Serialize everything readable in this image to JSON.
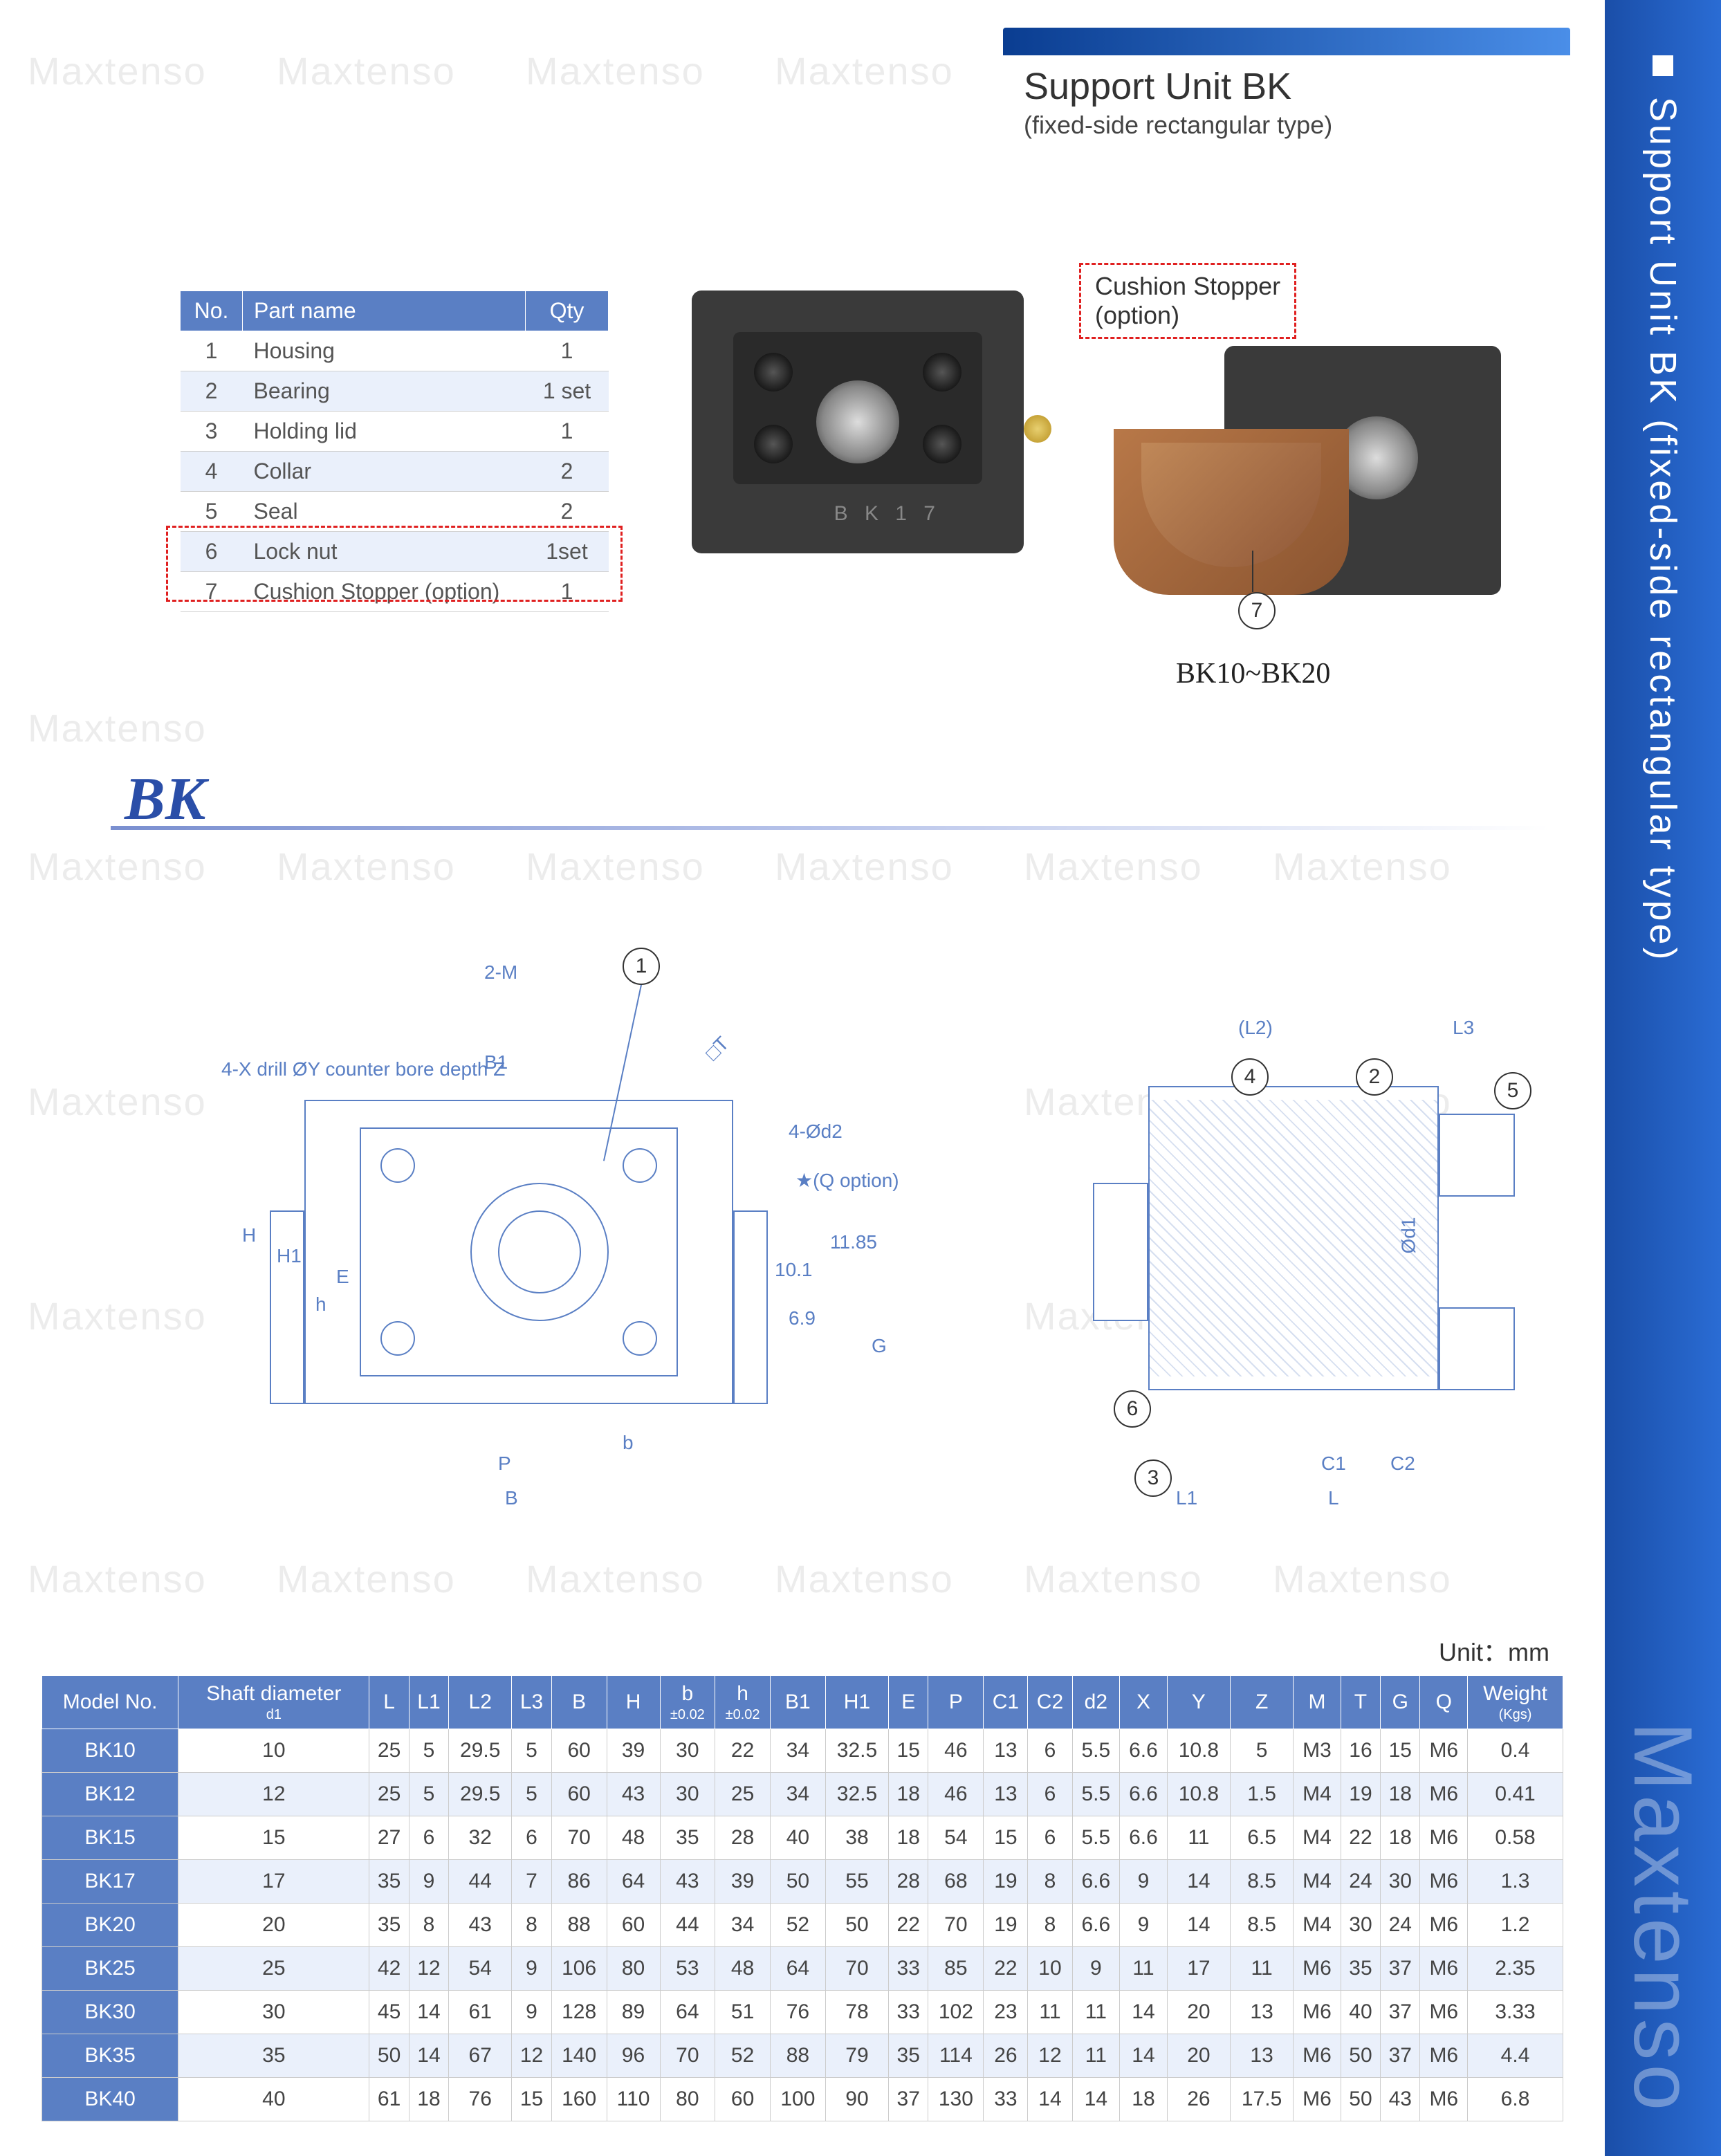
{
  "page": {
    "background_color": "#ffffff",
    "watermark_text": "Maxtenso",
    "watermark_color": "rgba(150,150,150,0.18)",
    "watermark_fontsize": 56
  },
  "side_stripe": {
    "gradient": [
      "#1a4ea8",
      "#2a6cd4"
    ],
    "text": "Support Unit BK (fixed-side rectangular type)",
    "text_color": "#ffffff",
    "text_fontsize": 54,
    "brand": "Maxtenso",
    "brand_color": "rgba(255,255,255,0.35)",
    "brand_fontsize": 120
  },
  "title_box": {
    "bar_gradient": [
      "#0a3d91",
      "#4a8ee8"
    ],
    "title": "Support Unit BK",
    "title_fontsize": 54,
    "subtitle": "(fixed-side rectangular type)",
    "subtitle_fontsize": 36
  },
  "parts_table": {
    "headers": [
      "No.",
      "Part name",
      "Qty"
    ],
    "header_bg": "#5a7fc4",
    "header_fg": "#ffffff",
    "row_alt_bg": "#eaf0fb",
    "dash_color": "#e02020",
    "rows": [
      {
        "no": "1",
        "name": "Housing",
        "qty": "1"
      },
      {
        "no": "2",
        "name": "Bearing",
        "qty": "1 set"
      },
      {
        "no": "3",
        "name": "Holding lid",
        "qty": "1"
      },
      {
        "no": "4",
        "name": "Collar",
        "qty": "2"
      },
      {
        "no": "5",
        "name": "Seal",
        "qty": "2"
      },
      {
        "no": "6",
        "name": "Lock nut",
        "qty": "1set"
      },
      {
        "no": "7",
        "name": "Cushion Stopper (option)",
        "qty": "1"
      }
    ]
  },
  "product_photos": {
    "left": {
      "bg": "#3a3a3a",
      "engrave": "B K 1 7"
    },
    "right": {
      "bg": "#3a3a3a",
      "cushion_color": "#a0683c"
    },
    "callout_label": "Cushion Stopper",
    "callout_sub": "(option)",
    "bubble_num": "7",
    "range_label": "BK10~BK20"
  },
  "bk_heading": {
    "text": "BK",
    "color": "#2a4ea8",
    "fontsize": 88,
    "underline_gradient": [
      "#7a8fd0",
      "#b8c4ea"
    ]
  },
  "drawing": {
    "line_color": "#5a7fc4",
    "labels": {
      "note_left": "4-X drill ØY counter bore depth Z",
      "m_label": "2-M",
      "b1": "B1",
      "t": "□T",
      "d2": "4-Ød2",
      "q_option": "★(Q option)",
      "v1": "11.85",
      "v2": "10.1",
      "v3": "6.9",
      "H": "H",
      "H1": "H1",
      "h": "h",
      "E": "E",
      "G": "G",
      "P": "P",
      "b": "b",
      "B": "B",
      "L2p": "(L2)",
      "L3": "L3",
      "d1": "Ød1",
      "C1": "C1",
      "C2": "C2",
      "L": "L",
      "L1": "L1"
    },
    "bubbles": [
      "1",
      "2",
      "3",
      "4",
      "5",
      "6"
    ]
  },
  "spec_table": {
    "unit_label": "Unit：mm",
    "unit_fontsize": 36,
    "header_bg": "#5a7fc4",
    "header_fg": "#ffffff",
    "row_alt_bg": "#eaf0fb",
    "columns": [
      {
        "label": "Model No."
      },
      {
        "label": "Shaft diameter",
        "sub": "d1"
      },
      {
        "label": "L"
      },
      {
        "label": "L1"
      },
      {
        "label": "L2"
      },
      {
        "label": "L3"
      },
      {
        "label": "B"
      },
      {
        "label": "H"
      },
      {
        "label": "b",
        "sub": "±0.02"
      },
      {
        "label": "h",
        "sub": "±0.02"
      },
      {
        "label": "B1"
      },
      {
        "label": "H1"
      },
      {
        "label": "E"
      },
      {
        "label": "P"
      },
      {
        "label": "C1"
      },
      {
        "label": "C2"
      },
      {
        "label": "d2"
      },
      {
        "label": "X"
      },
      {
        "label": "Y"
      },
      {
        "label": "Z"
      },
      {
        "label": "M"
      },
      {
        "label": "T"
      },
      {
        "label": "G"
      },
      {
        "label": "Q"
      },
      {
        "label": "Weight",
        "sub": "(Kgs)"
      }
    ],
    "rows": [
      [
        "BK10",
        "10",
        "25",
        "5",
        "29.5",
        "5",
        "60",
        "39",
        "30",
        "22",
        "34",
        "32.5",
        "15",
        "46",
        "13",
        "6",
        "5.5",
        "6.6",
        "10.8",
        "5",
        "M3",
        "16",
        "15",
        "M6",
        "0.4"
      ],
      [
        "BK12",
        "12",
        "25",
        "5",
        "29.5",
        "5",
        "60",
        "43",
        "30",
        "25",
        "34",
        "32.5",
        "18",
        "46",
        "13",
        "6",
        "5.5",
        "6.6",
        "10.8",
        "1.5",
        "M4",
        "19",
        "18",
        "M6",
        "0.41"
      ],
      [
        "BK15",
        "15",
        "27",
        "6",
        "32",
        "6",
        "70",
        "48",
        "35",
        "28",
        "40",
        "38",
        "18",
        "54",
        "15",
        "6",
        "5.5",
        "6.6",
        "11",
        "6.5",
        "M4",
        "22",
        "18",
        "M6",
        "0.58"
      ],
      [
        "BK17",
        "17",
        "35",
        "9",
        "44",
        "7",
        "86",
        "64",
        "43",
        "39",
        "50",
        "55",
        "28",
        "68",
        "19",
        "8",
        "6.6",
        "9",
        "14",
        "8.5",
        "M4",
        "24",
        "30",
        "M6",
        "1.3"
      ],
      [
        "BK20",
        "20",
        "35",
        "8",
        "43",
        "8",
        "88",
        "60",
        "44",
        "34",
        "52",
        "50",
        "22",
        "70",
        "19",
        "8",
        "6.6",
        "9",
        "14",
        "8.5",
        "M4",
        "30",
        "24",
        "M6",
        "1.2"
      ],
      [
        "BK25",
        "25",
        "42",
        "12",
        "54",
        "9",
        "106",
        "80",
        "53",
        "48",
        "64",
        "70",
        "33",
        "85",
        "22",
        "10",
        "9",
        "11",
        "17",
        "11",
        "M6",
        "35",
        "37",
        "M6",
        "2.35"
      ],
      [
        "BK30",
        "30",
        "45",
        "14",
        "61",
        "9",
        "128",
        "89",
        "64",
        "51",
        "76",
        "78",
        "33",
        "102",
        "23",
        "11",
        "11",
        "14",
        "20",
        "13",
        "M6",
        "40",
        "37",
        "M6",
        "3.33"
      ],
      [
        "BK35",
        "35",
        "50",
        "14",
        "67",
        "12",
        "140",
        "96",
        "70",
        "52",
        "88",
        "79",
        "35",
        "114",
        "26",
        "12",
        "11",
        "14",
        "20",
        "13",
        "M6",
        "50",
        "37",
        "M6",
        "4.4"
      ],
      [
        "BK40",
        "40",
        "61",
        "18",
        "76",
        "15",
        "160",
        "110",
        "80",
        "60",
        "100",
        "90",
        "37",
        "130",
        "33",
        "14",
        "14",
        "18",
        "26",
        "17.5",
        "M6",
        "50",
        "43",
        "M6",
        "6.8"
      ]
    ]
  }
}
